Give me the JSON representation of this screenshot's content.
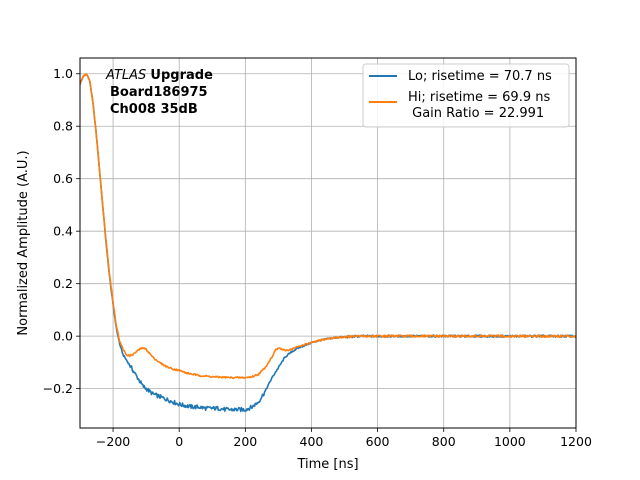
{
  "chart_data": {
    "type": "line",
    "xlabel": "Time [ns]",
    "ylabel": "Normalized Amplitude (A.U.)",
    "xlim": [
      -300,
      1200
    ],
    "ylim": [
      -0.35,
      1.06
    ],
    "xticks": [
      -200,
      0,
      200,
      400,
      600,
      800,
      1000,
      1200
    ],
    "xtick_labels": [
      "−200",
      "0",
      "200",
      "400",
      "600",
      "800",
      "1000",
      "1200"
    ],
    "yticks": [
      -0.2,
      0.0,
      0.2,
      0.4,
      0.6,
      0.8,
      1.0
    ],
    "ytick_labels": [
      "−0.2",
      "0.0",
      "0.2",
      "0.4",
      "0.6",
      "0.8",
      "1.0"
    ],
    "grid": true,
    "legend_position": "top-right",
    "annotation": {
      "italic_part": "ATLAS",
      "bold_part": "Upgrade",
      "line2": "Board186975",
      "line3": "Ch008 35dB"
    },
    "series": [
      {
        "name": "Lo; risetime = 70.7 ns",
        "color": "#1f77b4",
        "x": [
          -300,
          -290,
          -280,
          -270,
          -260,
          -250,
          -240,
          -230,
          -220,
          -210,
          -200,
          -190,
          -180,
          -170,
          -160,
          -150,
          -140,
          -130,
          -120,
          -110,
          -100,
          -80,
          -60,
          -40,
          -20,
          0,
          20,
          40,
          60,
          80,
          100,
          120,
          140,
          160,
          180,
          200,
          220,
          240,
          260,
          280,
          300,
          320,
          340,
          360,
          380,
          400,
          420,
          440,
          460,
          480,
          500,
          550,
          600,
          650,
          700,
          800,
          900,
          1000,
          1100,
          1200
        ],
        "y": [
          0.96,
          0.99,
          1.0,
          0.97,
          0.88,
          0.76,
          0.62,
          0.48,
          0.34,
          0.22,
          0.12,
          0.03,
          -0.03,
          -0.07,
          -0.09,
          -0.11,
          -0.13,
          -0.15,
          -0.17,
          -0.19,
          -0.2,
          -0.22,
          -0.23,
          -0.24,
          -0.25,
          -0.26,
          -0.265,
          -0.27,
          -0.27,
          -0.275,
          -0.275,
          -0.275,
          -0.28,
          -0.28,
          -0.28,
          -0.28,
          -0.27,
          -0.25,
          -0.21,
          -0.16,
          -0.12,
          -0.08,
          -0.06,
          -0.045,
          -0.035,
          -0.025,
          -0.018,
          -0.012,
          -0.008,
          -0.005,
          -0.003,
          0.0,
          0.0,
          0.0,
          0.0,
          0.0,
          0.0,
          0.0,
          0.0,
          0.0
        ]
      },
      {
        "name": "Hi; risetime = 69.9 ns\n Gain Ratio = 22.991",
        "color": "#ff7f0e",
        "x": [
          -300,
          -290,
          -280,
          -270,
          -260,
          -250,
          -240,
          -230,
          -220,
          -210,
          -200,
          -190,
          -180,
          -170,
          -160,
          -150,
          -140,
          -130,
          -120,
          -110,
          -100,
          -90,
          -80,
          -60,
          -40,
          -20,
          0,
          20,
          40,
          60,
          80,
          100,
          120,
          140,
          160,
          180,
          200,
          220,
          240,
          260,
          280,
          290,
          300,
          310,
          320,
          340,
          360,
          380,
          400,
          420,
          440,
          460,
          480,
          500,
          550,
          600,
          650,
          700,
          800,
          900,
          1000,
          1100,
          1200
        ],
        "y": [
          0.96,
          0.99,
          1.0,
          0.97,
          0.88,
          0.76,
          0.62,
          0.48,
          0.35,
          0.23,
          0.13,
          0.04,
          -0.02,
          -0.05,
          -0.07,
          -0.075,
          -0.07,
          -0.06,
          -0.05,
          -0.045,
          -0.05,
          -0.065,
          -0.08,
          -0.1,
          -0.115,
          -0.125,
          -0.13,
          -0.14,
          -0.145,
          -0.15,
          -0.152,
          -0.155,
          -0.156,
          -0.157,
          -0.158,
          -0.158,
          -0.158,
          -0.155,
          -0.145,
          -0.12,
          -0.08,
          -0.055,
          -0.045,
          -0.05,
          -0.055,
          -0.05,
          -0.04,
          -0.032,
          -0.025,
          -0.018,
          -0.012,
          -0.008,
          -0.005,
          -0.003,
          0.0,
          0.0,
          0.0,
          0.0,
          0.0,
          0.0,
          0.0,
          0.0,
          0.0
        ]
      }
    ]
  }
}
